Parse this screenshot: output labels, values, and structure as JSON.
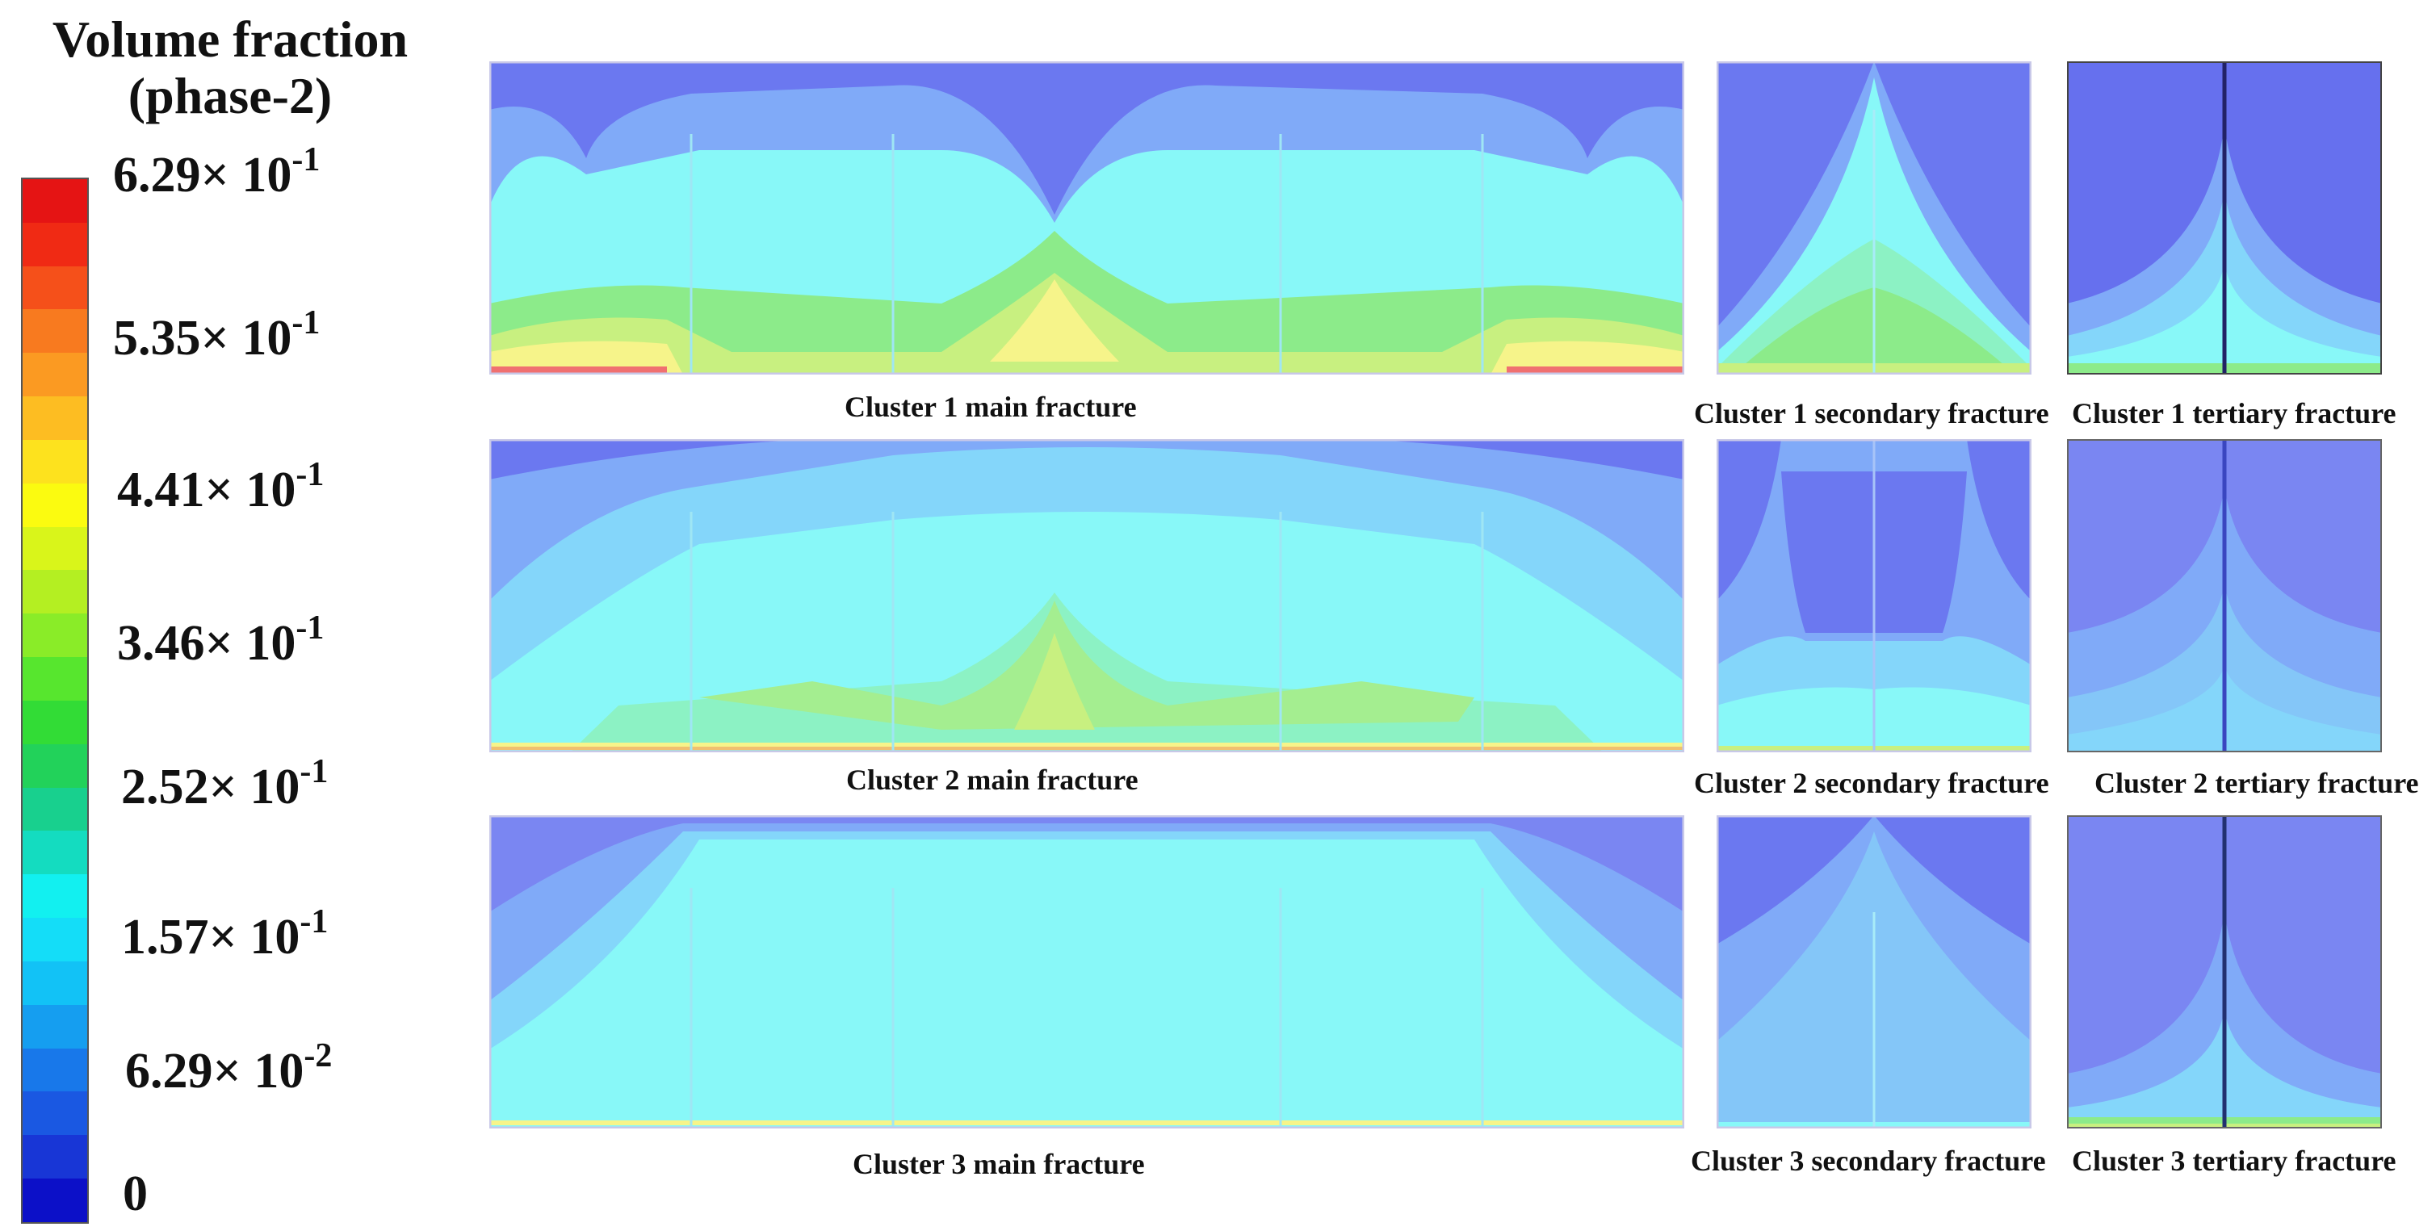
{
  "legend": {
    "title_line1": "Volume fraction",
    "title_line2": "(phase-2)",
    "ticks": [
      {
        "mantissa": "6.29× 10",
        "exp": "-1"
      },
      {
        "mantissa": "5.35× 10",
        "exp": "-1"
      },
      {
        "mantissa": "4.41× 10",
        "exp": "-1"
      },
      {
        "mantissa": "3.46× 10",
        "exp": "-1"
      },
      {
        "mantissa": "2.52× 10",
        "exp": "-1"
      },
      {
        "mantissa": "1.57× 10",
        "exp": "-1"
      },
      {
        "mantissa": "6.29× 10",
        "exp": "-2"
      },
      {
        "mantissa": "0",
        "exp": ""
      }
    ],
    "colors": [
      "#e51414",
      "#f02a14",
      "#f5501a",
      "#f87a1f",
      "#fb9a22",
      "#fdbd22",
      "#fde21e",
      "#fbfb10",
      "#d9f51a",
      "#b4ef22",
      "#8aec28",
      "#57e62e",
      "#32dc36",
      "#22d25a",
      "#18d08e",
      "#14dcc0",
      "#12f0f0",
      "#14ddf8",
      "#12c2f6",
      "#159ef0",
      "#1878ea",
      "#1a58e2",
      "#1836d6",
      "#0c10c8"
    ]
  },
  "captions": {
    "c1_main": "Cluster 1 main fracture",
    "c1_secondary": "Cluster 1 secondary fracture",
    "c1_tertiary": "Cluster 1 tertiary fracture",
    "c2_main": "Cluster 2 main fracture",
    "c2_secondary": "Cluster 2 secondary fracture",
    "c2_tertiary": "Cluster 2 tertiary fracture",
    "c3_main": "Cluster 3 main fracture",
    "c3_secondary": "Cluster 3 secondary fracture",
    "c3_tertiary": "Cluster 3 tertiary fracture"
  },
  "contour_colors": {
    "blue": "#6b78f0",
    "light_blue": "#80aaf8",
    "sky": "#84d6fa",
    "cyan": "#88f8f8",
    "aqua_green": "#8cf2c4",
    "green": "#8ceb8a",
    "yellow_green": "#c8f080",
    "yellow": "#f6f48a",
    "red": "#f07070"
  }
}
